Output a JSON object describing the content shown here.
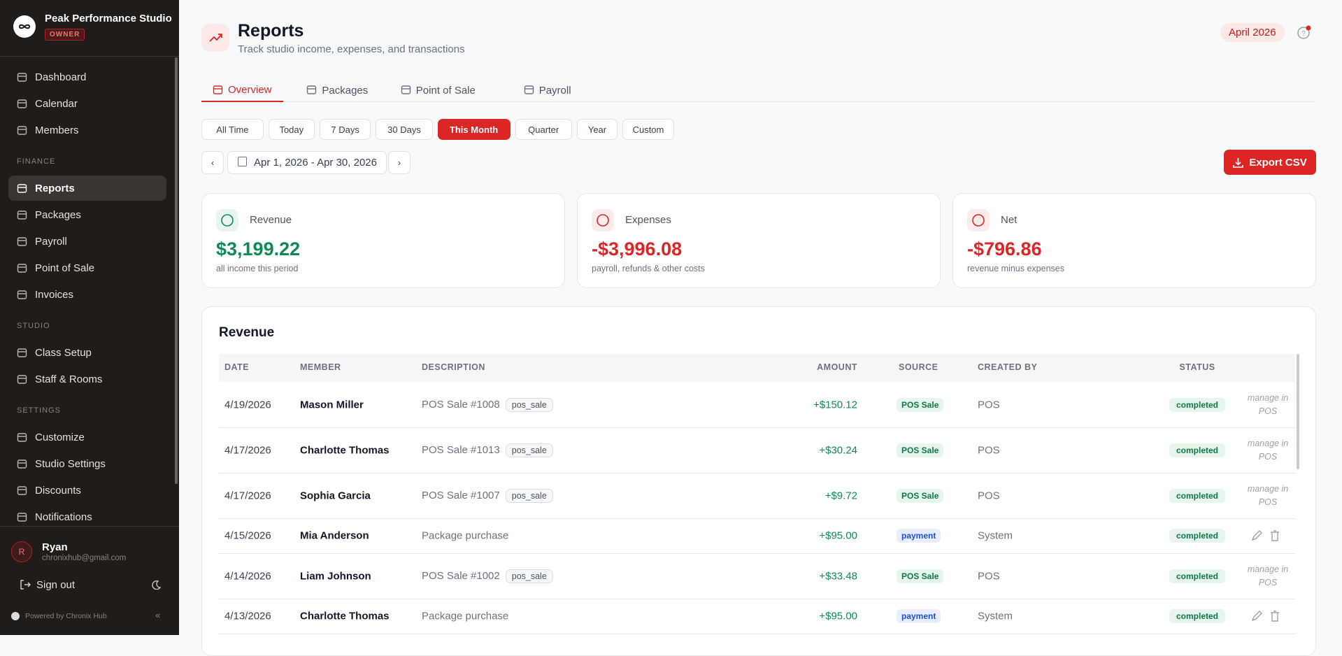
{
  "sidebar": {
    "brand": "Peak Performance Studio",
    "role": "OWNER",
    "nav": [
      {
        "items": [
          "Dashboard",
          "Calendar",
          "Members"
        ]
      },
      {
        "heading": "FINANCE",
        "items": [
          "Reports",
          "Packages",
          "Payroll",
          "Point of Sale",
          "Invoices"
        ]
      },
      {
        "heading": "STUDIO",
        "items": [
          "Class Setup",
          "Staff & Rooms"
        ]
      },
      {
        "heading": "SETTINGS",
        "items": [
          "Customize",
          "Studio Settings",
          "Discounts",
          "Notifications"
        ]
      }
    ],
    "active": "Reports",
    "user": {
      "initial": "R",
      "name": "Ryan",
      "email": "chronixhub@gmail.com"
    },
    "sign_out": "Sign out",
    "powered": "Powered by Chronix Hub"
  },
  "header": {
    "title": "Reports",
    "subtitle": "Track studio income, expenses, and transactions",
    "period": "April 2026"
  },
  "tabs": {
    "items": [
      "Overview",
      "Packages",
      "Point of Sale",
      "Payroll"
    ],
    "active": 0
  },
  "filters": {
    "items": [
      "All Time",
      "Today",
      "7 Days",
      "30 Days",
      "This Month",
      "Quarter",
      "Year",
      "Custom"
    ],
    "active": 4
  },
  "date_range": "Apr 1, 2026 - Apr 30, 2026",
  "export": "Export CSV",
  "cards": [
    {
      "label": "Revenue",
      "value": "$3,199.22",
      "note": "all income this period",
      "color": "#0e8a55"
    },
    {
      "label": "Expenses",
      "value": "-$3,996.08",
      "note": "payroll, refunds & other costs",
      "color": "#dc2626"
    },
    {
      "label": "Net",
      "value": "-$796.86",
      "note": "revenue minus expenses",
      "color": "#dc2626"
    }
  ],
  "table": {
    "title": "Revenue",
    "columns": [
      "DATE",
      "MEMBER",
      "DESCRIPTION",
      "AMOUNT",
      "SOURCE",
      "CREATED BY",
      "STATUS"
    ],
    "rows": [
      {
        "date": "4/19/2026",
        "member": "Mason Miller",
        "description": "POS Sale #1008",
        "tag": "pos_sale",
        "amount": "+$150.12",
        "source": "POS Sale",
        "created_by": "POS",
        "status": "completed",
        "action": "manage in POS"
      },
      {
        "date": "4/17/2026",
        "member": "Charlotte Thomas",
        "description": "POS Sale #1013",
        "tag": "pos_sale",
        "amount": "+$30.24",
        "source": "POS Sale",
        "created_by": "POS",
        "status": "completed",
        "action": "manage in POS"
      },
      {
        "date": "4/17/2026",
        "member": "Sophia Garcia",
        "description": "POS Sale #1007",
        "tag": "pos_sale",
        "amount": "+$9.72",
        "source": "POS Sale",
        "created_by": "POS",
        "status": "completed",
        "action": "manage in POS"
      },
      {
        "date": "4/15/2026",
        "member": "Mia Anderson",
        "description": "Package purchase",
        "amount": "+$95.00",
        "source": "payment",
        "created_by": "System",
        "status": "completed"
      },
      {
        "date": "4/14/2026",
        "member": "Liam Johnson",
        "description": "POS Sale #1002",
        "tag": "pos_sale",
        "amount": "+$33.48",
        "source": "POS Sale",
        "created_by": "POS",
        "status": "completed",
        "action": "manage in POS"
      },
      {
        "date": "4/13/2026",
        "member": "Charlotte Thomas",
        "description": "Package purchase",
        "amount": "+$95.00",
        "source": "payment",
        "created_by": "System",
        "status": "completed"
      }
    ]
  }
}
